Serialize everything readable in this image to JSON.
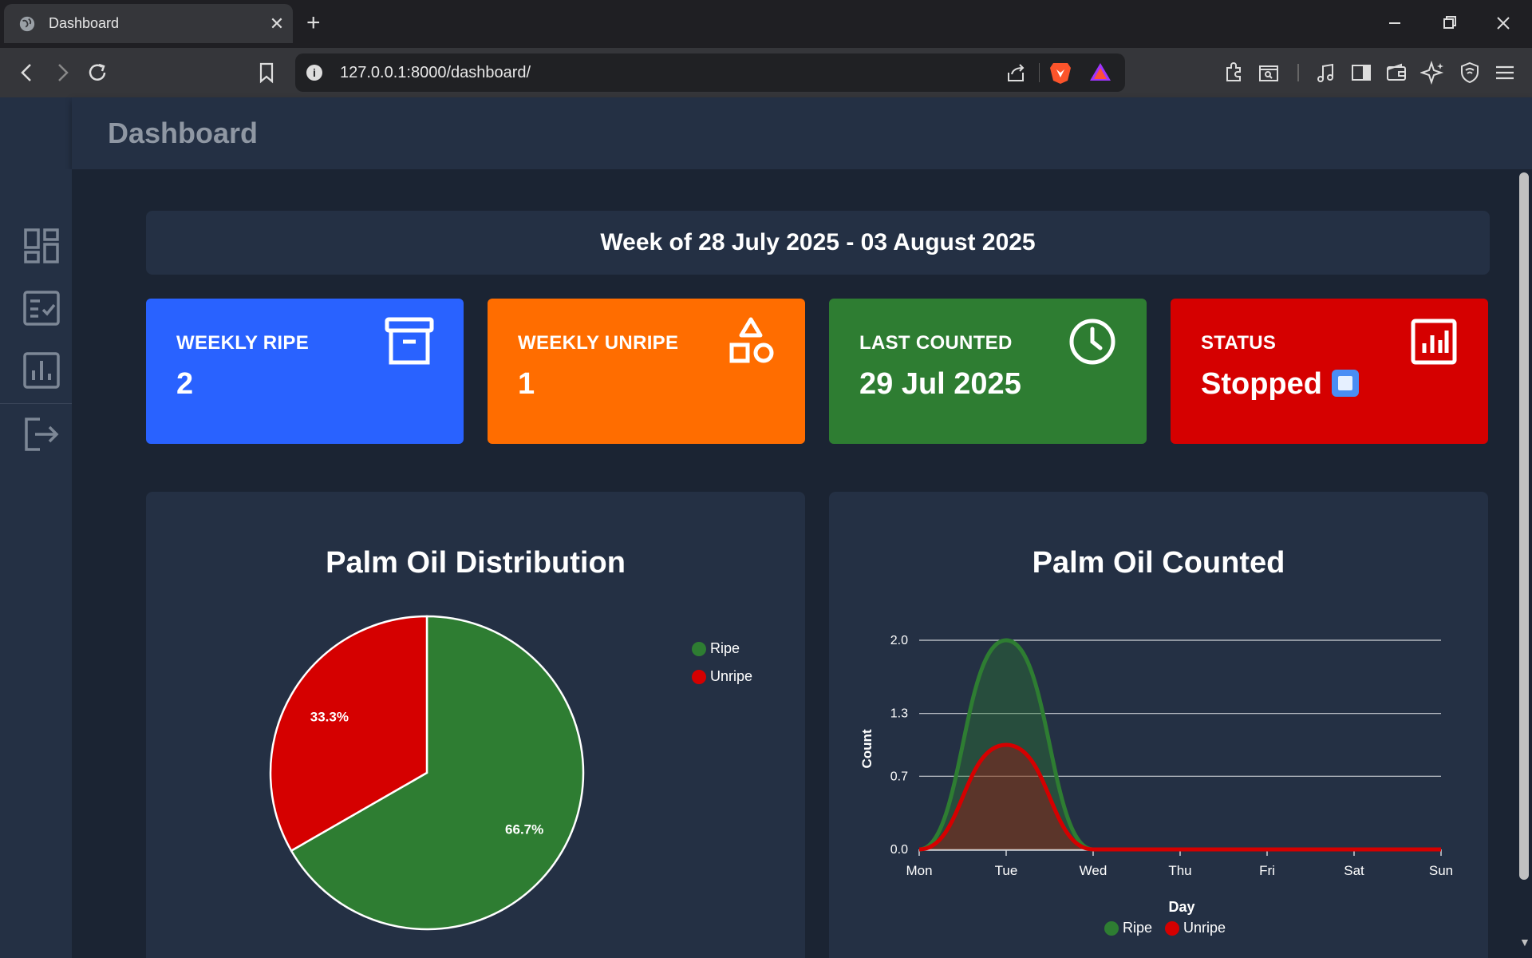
{
  "browser": {
    "tab_title": "Dashboard",
    "tab_close": "✕",
    "new_tab": "+",
    "url": "127.0.0.1:8000/dashboard/",
    "info": "i"
  },
  "app": {
    "title": "Dashboard"
  },
  "week": {
    "label": "Week of 28 July 2025 - 03 August 2025"
  },
  "cards": {
    "weekly_ripe": {
      "label": "WEEKLY RIPE",
      "value": "2",
      "color": "#2962ff",
      "icon": "archive-icon"
    },
    "weekly_unripe": {
      "label": "WEEKLY UNRIPE",
      "value": "1",
      "color": "#ff6d00",
      "icon": "shapes-icon"
    },
    "last_counted": {
      "label": "LAST COUNTED",
      "value": "29 Jul 2025",
      "color": "#2e7d32",
      "icon": "clock-icon"
    },
    "status": {
      "label": "STATUS",
      "value": "Stopped",
      "color": "#d50000",
      "icon": "bar-chart-icon"
    }
  },
  "sidebar": {
    "items": [
      {
        "icon": "dashboard-icon"
      },
      {
        "icon": "checklist-icon"
      },
      {
        "icon": "analytics-icon"
      },
      {
        "icon": "logout-icon"
      }
    ]
  },
  "colors": {
    "ripe": "#2e7d32",
    "unripe": "#d50000"
  },
  "chart_data": [
    {
      "type": "pie",
      "title": "Palm Oil Distribution",
      "categories": [
        "Ripe",
        "Unripe"
      ],
      "values": [
        66.7,
        33.3
      ],
      "labels": [
        "66.7%",
        "33.3%"
      ],
      "legend": "top-right"
    },
    {
      "type": "area",
      "title": "Palm Oil Counted",
      "x": [
        "Mon",
        "Tue",
        "Wed",
        "Thu",
        "Fri",
        "Sat",
        "Sun"
      ],
      "series": [
        {
          "name": "Ripe",
          "values": [
            0,
            2,
            0,
            0,
            0,
            0,
            0
          ]
        },
        {
          "name": "Unripe",
          "values": [
            0,
            1,
            0,
            0,
            0,
            0,
            0
          ]
        }
      ],
      "yticks": [
        "0.0",
        "0.7",
        "1.3",
        "2.0"
      ],
      "ylim": [
        0,
        2
      ],
      "xlabel": "Day",
      "ylabel": "Count",
      "grid": true,
      "legend": "bottom"
    }
  ]
}
